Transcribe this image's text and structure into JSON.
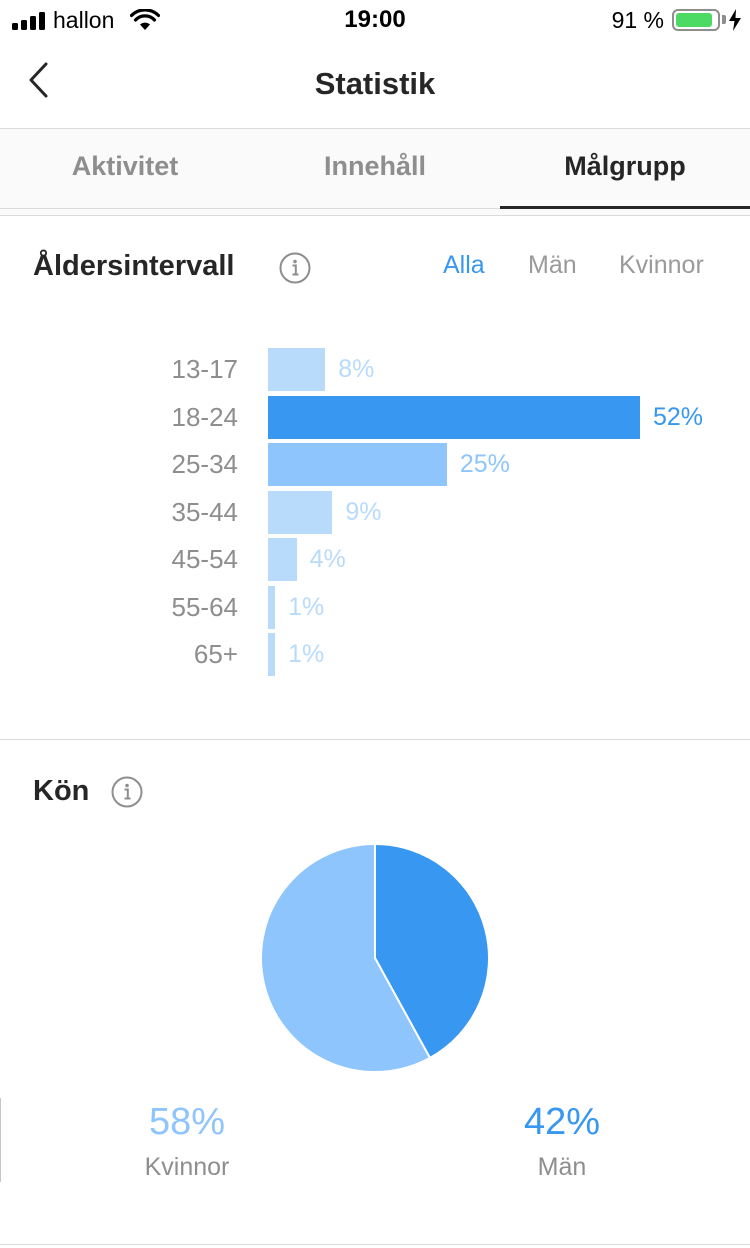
{
  "status_bar": {
    "carrier": "hallon",
    "time": "19:00",
    "battery_percent": "91 %",
    "battery_level": 0.91,
    "icons": [
      "signal-icon",
      "wifi-icon",
      "battery-icon",
      "charging-bolt-icon"
    ]
  },
  "header": {
    "title": "Statistik",
    "back_icon": "chevron-left-icon"
  },
  "tabs": [
    {
      "label": "Aktivitet",
      "active": false
    },
    {
      "label": "Innehåll",
      "active": false
    },
    {
      "label": "Målgrupp",
      "active": true
    }
  ],
  "age_section": {
    "title": "Åldersintervall",
    "info_icon": "info-icon",
    "filters": [
      {
        "label": "Alla",
        "active": true
      },
      {
        "label": "Män",
        "active": false
      },
      {
        "label": "Kvinnor",
        "active": false
      }
    ]
  },
  "gender_section": {
    "title": "Kön",
    "info_icon": "info-icon",
    "women_percent": "58%",
    "women_label": "Kvinnor",
    "men_percent": "42%",
    "men_label": "Män"
  },
  "colors": {
    "accent": "#3897f0",
    "bar_max": "#3897f0",
    "bar_mid": "#8dc5fc",
    "bar_low": "#b8dbfc",
    "label_low": "#b8dbfc",
    "pie_men": "#3897f0",
    "pie_women": "#8dc5fc"
  },
  "chart_data": [
    {
      "type": "bar",
      "orientation": "horizontal",
      "title": "Åldersintervall",
      "categories": [
        "13-17",
        "18-24",
        "25-34",
        "35-44",
        "45-54",
        "55-64",
        "65+"
      ],
      "values": [
        8,
        52,
        25,
        9,
        4,
        1,
        1
      ],
      "value_labels": [
        "8%",
        "52%",
        "25%",
        "9%",
        "4%",
        "1%",
        "1%"
      ],
      "unit": "%"
    },
    {
      "type": "pie",
      "title": "Kön",
      "categories": [
        "Män",
        "Kvinnor"
      ],
      "values": [
        42,
        58
      ],
      "unit": "%"
    }
  ]
}
